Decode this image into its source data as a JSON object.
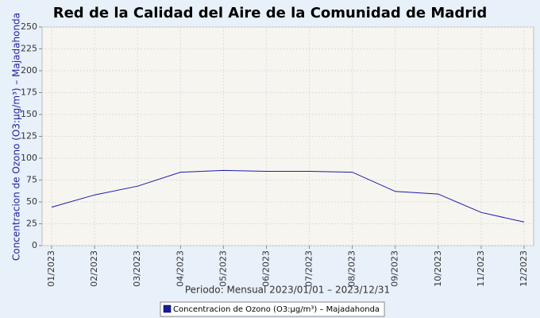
{
  "chart_data": {
    "type": "line",
    "title": "Red de la Calidad del Aire de la Comunidad de Madrid",
    "x_label": "Periodo: Mensual 2023/01/01 – 2023/12/31",
    "y_label": "Concentracion de Ozono (O3:µg/m³) – Majadahonda",
    "categories": [
      "01/2023",
      "02/2023",
      "03/2023",
      "04/2023",
      "05/2023",
      "06/2023",
      "07/2023",
      "08/2023",
      "09/2023",
      "10/2023",
      "11/2023",
      "12/2023"
    ],
    "series": [
      {
        "name": "Concentracion de Ozono (O3:µg/m³) – Majadahonda",
        "color": "#1a1aa8",
        "values": [
          44,
          58,
          68,
          84,
          86,
          85,
          85,
          84,
          62,
          59,
          38,
          27
        ]
      }
    ],
    "ylim": [
      0,
      250
    ],
    "yticks": [
      0,
      25,
      50,
      75,
      100,
      125,
      150,
      175,
      200,
      225,
      250
    ],
    "grid": true,
    "legend": "bottom"
  }
}
